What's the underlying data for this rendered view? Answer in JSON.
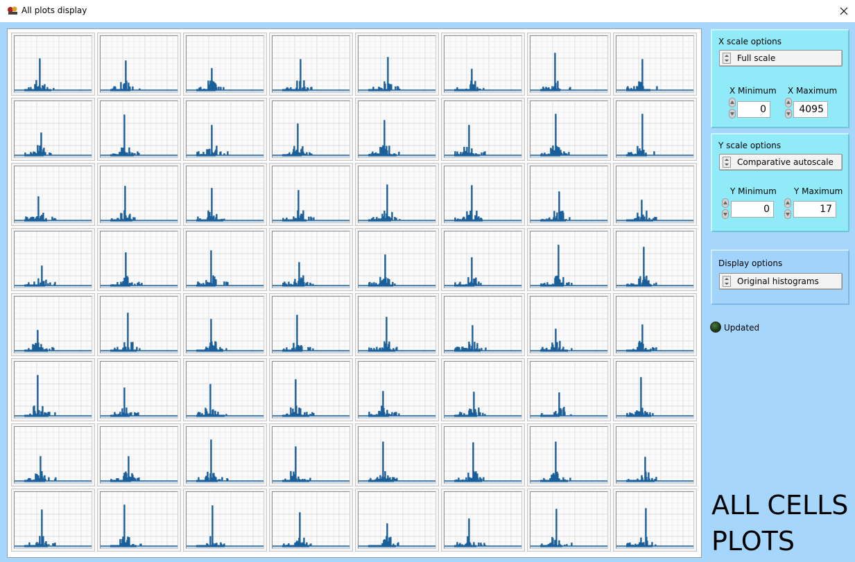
{
  "window": {
    "title": "All plots display"
  },
  "x_scale": {
    "label": "X scale options",
    "mode": "Full scale",
    "min_label": "X Minimum",
    "max_label": "X Maximum",
    "min": "0",
    "max": "4095"
  },
  "y_scale": {
    "label": "Y scale options",
    "mode": "Comparative autoscale",
    "min_label": "Y Minimum",
    "max_label": "Y Maximum",
    "min": "0",
    "max": "17"
  },
  "display": {
    "label": "Display options",
    "mode": "Original histograms"
  },
  "status": {
    "updated_label": "Updated"
  },
  "banner": {
    "line1": "ALL CELLS",
    "line2": "PLOTS"
  },
  "colors": {
    "trace": "#1a5e9a",
    "window_bg": "#a6d6fb",
    "panel_cyan": "#90eaf8"
  },
  "grid": {
    "rows": 8,
    "cols": 8
  }
}
